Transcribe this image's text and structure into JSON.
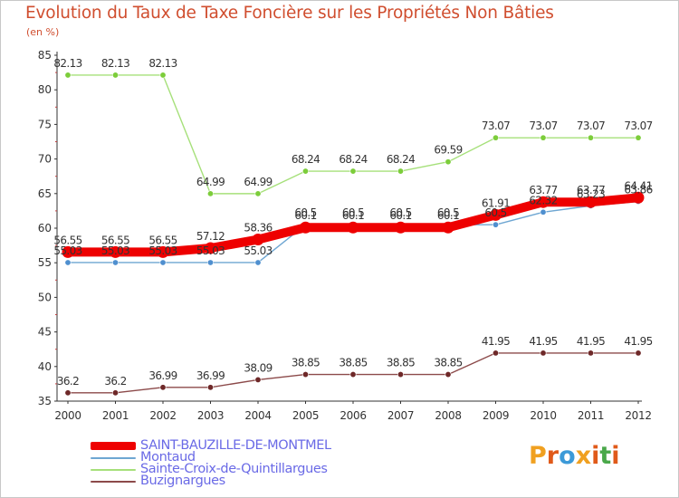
{
  "chart_data": {
    "type": "line",
    "title": "Evolution du Taux de Taxe Foncière sur les Propriétés Non Bâties",
    "subtitle": "(en %)",
    "xlabel": "",
    "ylabel": "",
    "x": [
      "2000",
      "2001",
      "2002",
      "2003",
      "2004",
      "2005",
      "2006",
      "2007",
      "2008",
      "2009",
      "2010",
      "2011",
      "2012"
    ],
    "ylim": [
      35,
      85
    ],
    "yticks": [
      "35",
      "40",
      "45",
      "50",
      "55",
      "60",
      "65",
      "70",
      "75",
      "80",
      "85"
    ],
    "grid": false,
    "legend_position": "bottom-left",
    "series": [
      {
        "name": "SAINT-BAUZILLE-DE-MONTMEL",
        "color": "#ee0000",
        "marker_color": "#ee0000",
        "values": [
          56.55,
          56.55,
          56.55,
          57.12,
          58.36,
          60.1,
          60.1,
          60.1,
          60.1,
          61.91,
          63.77,
          63.77,
          64.41
        ],
        "labels": [
          "56.55",
          "56.55",
          "56.55",
          "57.12",
          "58.36",
          "60.1",
          "60.1",
          "60.1",
          "60.1",
          "61.91",
          "63.77",
          "63.77",
          "64.41"
        ]
      },
      {
        "name": "Montaud",
        "color": "#6ea6d2",
        "marker_color": "#4f8fcf",
        "values": [
          55.03,
          55.03,
          55.03,
          55.03,
          55.03,
          60.5,
          60.5,
          60.5,
          60.5,
          60.5,
          62.32,
          63.23,
          63.86
        ],
        "labels": [
          "55.03",
          "55.03",
          "55.03",
          "55.03",
          "55.03",
          "60.5",
          "60.5",
          "60.5",
          "60.5",
          "60.5",
          "62.32",
          "63.23",
          "63.86"
        ]
      },
      {
        "name": "Sainte-Croix-de-Quintillargues",
        "color": "#a6e07a",
        "marker_color": "#7ccd3a",
        "values": [
          82.13,
          82.13,
          82.13,
          64.99,
          64.99,
          68.24,
          68.24,
          68.24,
          69.59,
          73.07,
          73.07,
          73.07,
          73.07
        ],
        "labels": [
          "82.13",
          "82.13",
          "82.13",
          "64.99",
          "64.99",
          "68.24",
          "68.24",
          "68.24",
          "69.59",
          "73.07",
          "73.07",
          "73.07",
          "73.07"
        ]
      },
      {
        "name": "Buzignargues",
        "color": "#8c4a4a",
        "marker_color": "#6e2828",
        "values": [
          36.2,
          36.2,
          36.99,
          36.99,
          38.09,
          38.85,
          38.85,
          38.85,
          38.85,
          41.95,
          41.95,
          41.95,
          41.95
        ],
        "labels": [
          "36.2",
          "36.2",
          "36.99",
          "36.99",
          "38.09",
          "38.85",
          "38.85",
          "38.85",
          "38.85",
          "41.95",
          "41.95",
          "41.95",
          "41.95"
        ]
      }
    ]
  },
  "logo": {
    "letters": [
      "P",
      "r",
      "o",
      "x",
      "i",
      "t",
      "i"
    ],
    "colors": [
      "#f0a020",
      "#e05a1a",
      "#3c9ad8",
      "#f0a020",
      "#e05a1a",
      "#4aa84a",
      "#e05a1a"
    ]
  }
}
